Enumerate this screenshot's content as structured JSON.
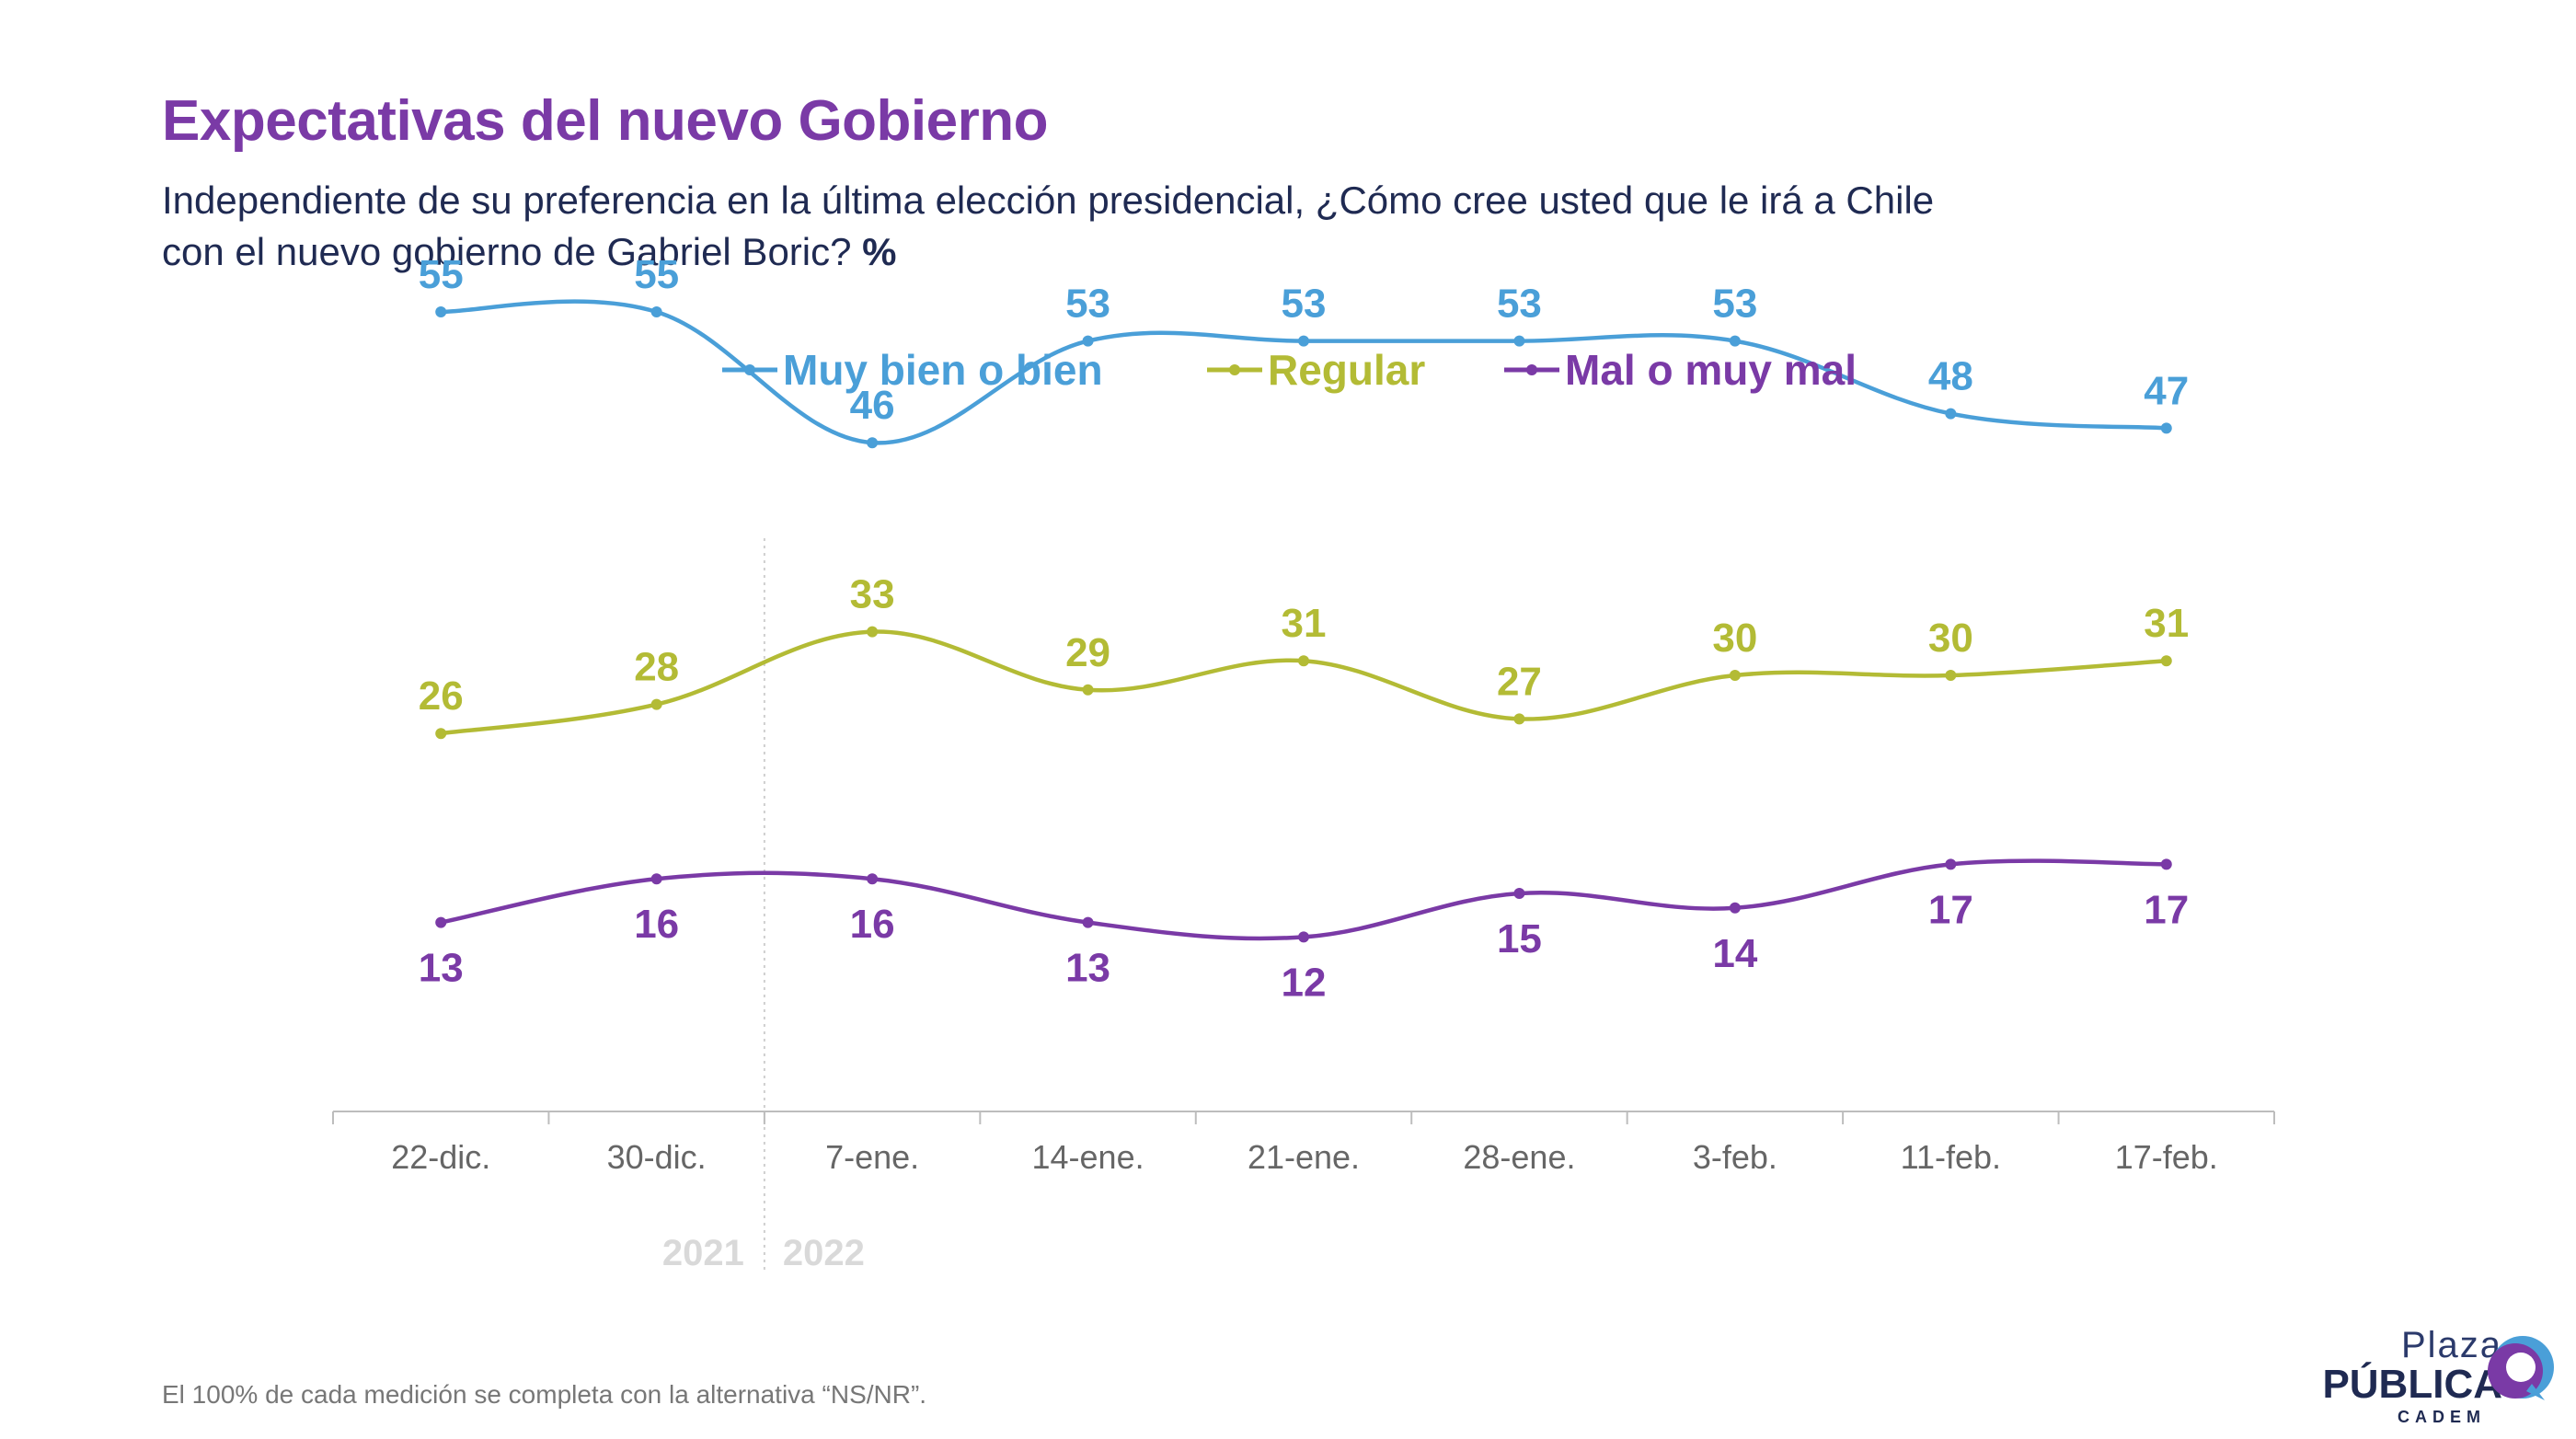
{
  "title": "Expectativas del nuevo Gobierno",
  "subtitle_line1": "Independiente de su preferencia en la última elección presidencial, ¿Cómo cree usted que le irá a Chile",
  "subtitle_line2": "con el nuevo gobierno de Gabriel Boric?",
  "subtitle_unit": "%",
  "footnote": "El 100% de cada medición se completa con la alternativa “NS/NR”.",
  "logo": {
    "line1": "Plaza",
    "line2": "PÚBLICA",
    "line3": "CADEM"
  },
  "chart_data": {
    "type": "line",
    "categories": [
      "22-dic.",
      "30-dic.",
      "7-ene.",
      "14-ene.",
      "21-ene.",
      "28-ene.",
      "3-feb.",
      "11-feb.",
      "17-feb."
    ],
    "year_labels": [
      "2021",
      "2022"
    ],
    "legend_position": "top-center",
    "grid": false,
    "ylim": [
      0,
      75
    ],
    "series": [
      {
        "name": "Muy bien o bien",
        "color": "#4a9fd8",
        "label_pos": "above",
        "values": [
          55,
          55,
          46,
          53,
          53,
          53,
          53,
          48,
          47
        ]
      },
      {
        "name": "Regular",
        "color": "#b3bb35",
        "label_pos": "above",
        "values": [
          26,
          28,
          33,
          29,
          31,
          27,
          30,
          30,
          31
        ]
      },
      {
        "name": "Mal o muy mal",
        "color": "#7a3aa6",
        "label_pos": "below",
        "values": [
          13,
          16,
          16,
          13,
          12,
          15,
          14,
          17,
          17
        ]
      }
    ]
  }
}
